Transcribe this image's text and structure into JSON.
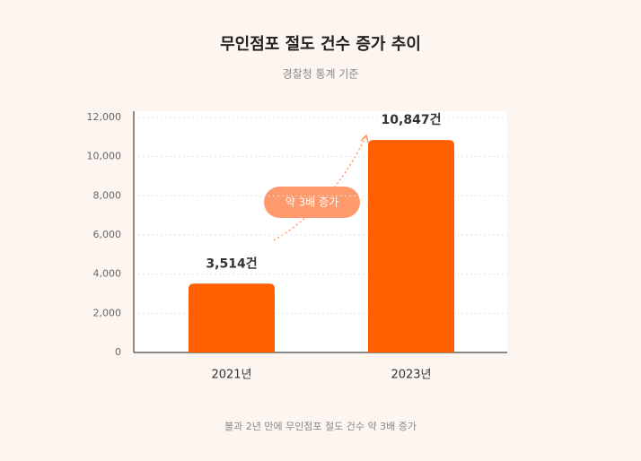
{
  "chart_data": {
    "type": "bar",
    "title": "무인점포 절도 건수 증가 추이",
    "subtitle": "경찰청 통계 기준",
    "categories": [
      "2021년",
      "2023년"
    ],
    "values": [
      3514,
      10847
    ],
    "value_labels": [
      "3,514건",
      "10,847건"
    ],
    "color": "#ff5f00",
    "ylim": [
      0,
      12000
    ],
    "yticks": [
      0,
      {
        "value": 2000,
        "label": "2,000"
      },
      {
        "value": 4000,
        "label": "4,000"
      },
      {
        "value": 6000,
        "label": "6,000"
      },
      {
        "value": 8000,
        "label": "8,000"
      },
      {
        "value": 10000,
        "label": "10,000"
      },
      {
        "value": 12000,
        "label": "12,000"
      }
    ],
    "grid": true,
    "annotation": "약 3배 증가",
    "note": "불과 2년 만에 무인점포 절도 건수 약 3배 증가"
  }
}
